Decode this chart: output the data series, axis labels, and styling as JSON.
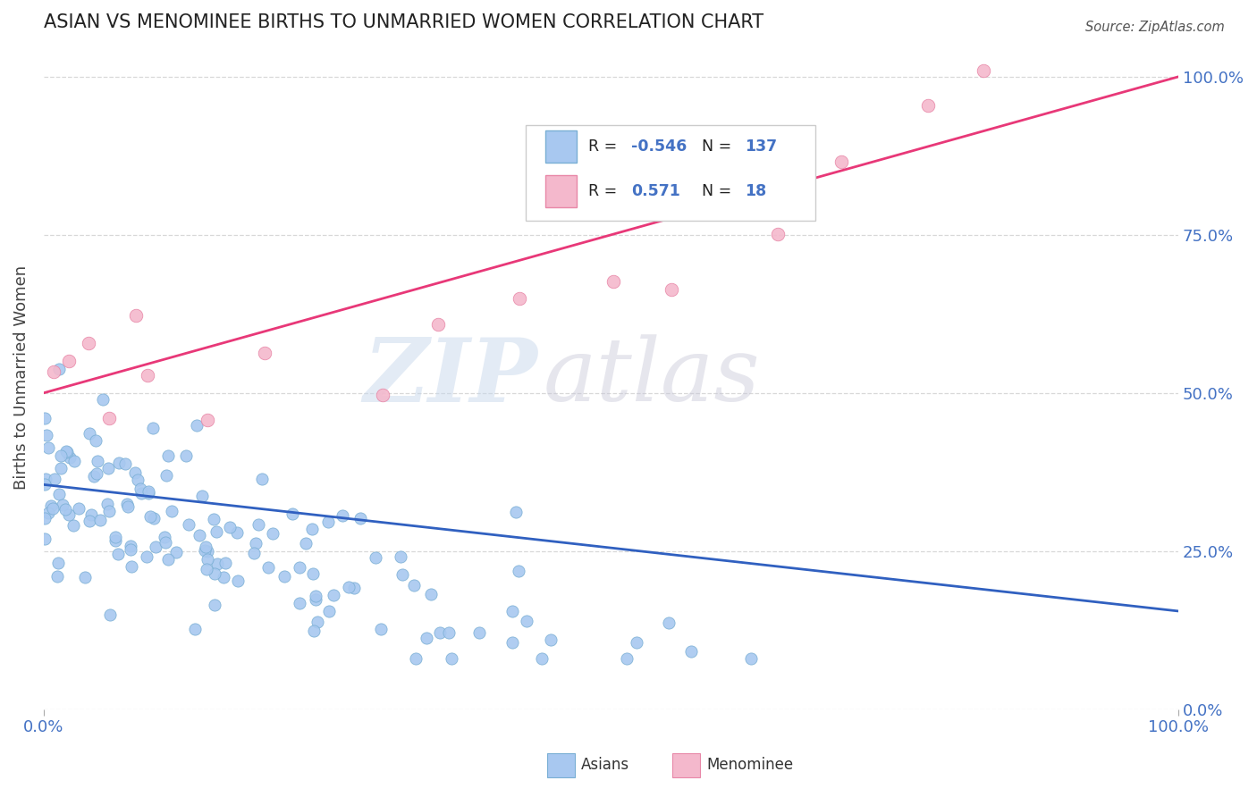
{
  "title": "ASIAN VS MENOMINEE BIRTHS TO UNMARRIED WOMEN CORRELATION CHART",
  "source": "Source: ZipAtlas.com",
  "ylabel": "Births to Unmarried Women",
  "asian_color": "#a8c8f0",
  "asian_edge_color": "#7aafd4",
  "menominee_color": "#f4b8cc",
  "menominee_edge_color": "#e888a8",
  "trend_asian_color": "#3060c0",
  "trend_menominee_color": "#e83878",
  "R_asian": -0.546,
  "N_asian": 137,
  "R_menominee": 0.571,
  "N_menominee": 18,
  "watermark_zip": "ZIP",
  "watermark_atlas": "atlas",
  "background_color": "#ffffff",
  "grid_color": "#d8d8d8",
  "legend_edge_color": "#cccccc",
  "tick_color": "#4472c4",
  "title_color": "#222222",
  "ylabel_color": "#444444",
  "source_color": "#555555"
}
